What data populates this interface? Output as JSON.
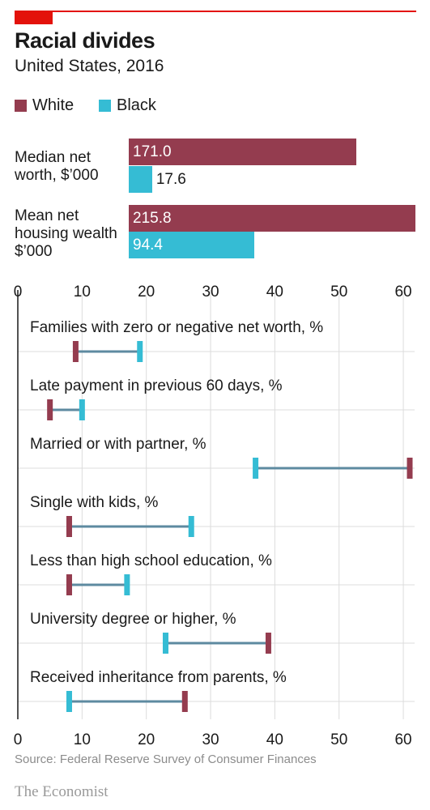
{
  "header": {
    "title": "Racial divides",
    "subtitle": "United States, 2016"
  },
  "legend": [
    {
      "label": "White",
      "color": "#943c4f"
    },
    {
      "label": "Black",
      "color": "#35bcd4"
    }
  ],
  "wealth": {
    "groups": [
      {
        "label": "Median net\nworth, $’000",
        "white": 171.0,
        "black": 17.6,
        "white_label": "171.0",
        "black_label": "17.6"
      },
      {
        "label": "Mean net\nhousing wealth\n$’000",
        "white": 215.8,
        "black": 94.4,
        "white_label": "215.8",
        "black_label": "94.4"
      }
    ]
  },
  "chart_data": {
    "type": "dumbbell",
    "xlim": [
      0,
      61
    ],
    "xticks": [
      0,
      10,
      20,
      30,
      40,
      50,
      60
    ],
    "series": [
      {
        "name": "White",
        "color": "#943c4f"
      },
      {
        "name": "Black",
        "color": "#35bcd4"
      }
    ],
    "rows": [
      {
        "label": "Families with zero or negative net worth, %",
        "white": 9,
        "black": 19
      },
      {
        "label": "Late payment in previous 60 days, %",
        "white": 5,
        "black": 10
      },
      {
        "label": "Married or with partner, %",
        "white": 61,
        "black": 37
      },
      {
        "label": "Single with kids, %",
        "white": 8,
        "black": 27
      },
      {
        "label": "Less than high school education, %",
        "white": 8,
        "black": 17
      },
      {
        "label": "University degree or higher, %",
        "white": 39,
        "black": 23
      },
      {
        "label": "Received inheritance from parents, %",
        "white": 26,
        "black": 8
      }
    ]
  },
  "footer": {
    "source": "Source: Federal Reserve Survey of Consumer Finances",
    "brand": "The Economist"
  },
  "colors": {
    "accent_red": "#e3120b",
    "connector": "#5d8aa0",
    "grid": "#dcdcdc"
  }
}
